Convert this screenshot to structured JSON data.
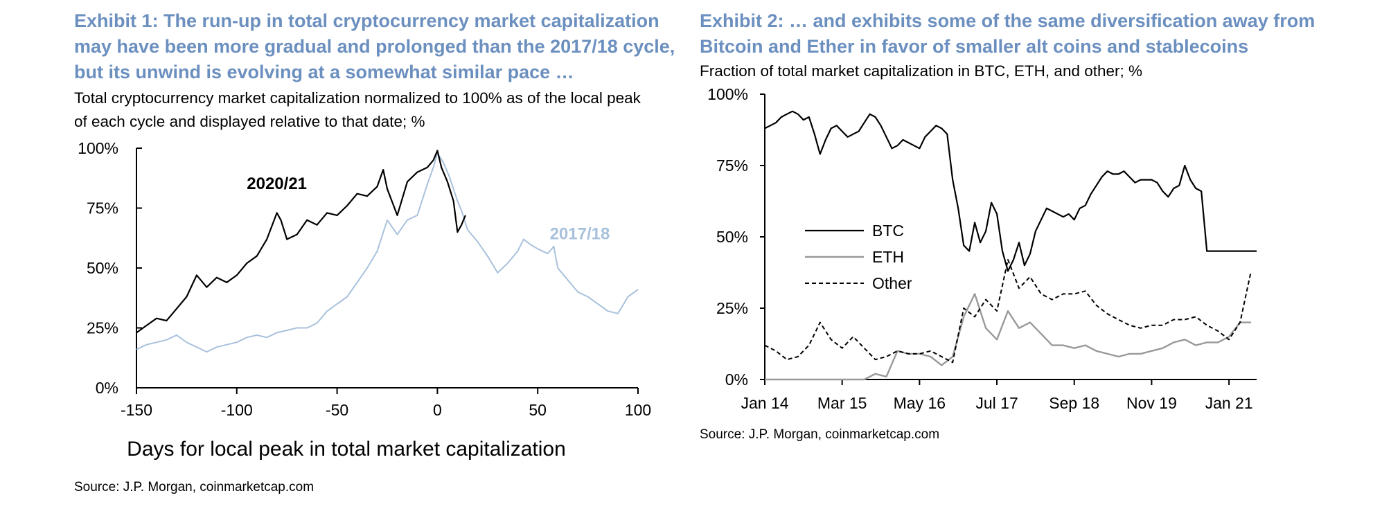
{
  "exhibit1": {
    "title_lines": [
      "Exhibit 1: The run-up in total cryptocurrency market capitalization",
      "may have been more gradual and prolonged than the 2017/18 cycle,",
      "but its unwind is evolving at a somewhat similar pace …"
    ],
    "subtitle_lines": [
      "Total cryptocurrency market capitalization normalized to 100% as of the local peak",
      "of each cycle and displayed relative to that date; %"
    ],
    "source": "Source: J.P.  Morgan, coinmarketcap.com"
  },
  "exhibit2": {
    "title_lines": [
      "Exhibit 2: … and exhibits some of the same diversification away from",
      "Bitcoin and Ether in favor of smaller alt coins and stablecoins"
    ],
    "subtitle_lines": [
      "Fraction of total market capitalization in BTC, ETH, and other; %"
    ],
    "source": "Source: J.P.  Morgan, coinmarketcap.com"
  },
  "colors": {
    "title": "#6b8fbf",
    "series_2020_21": "#000000",
    "series_2017_18": "#a9c1dc",
    "btc": "#000000",
    "eth": "#999999",
    "other": "#000000"
  },
  "chart_data": [
    {
      "type": "line",
      "xlabel": "Days for local peak in total market capitalization",
      "ylabel": "",
      "xlim": [
        -150,
        100
      ],
      "ylim": [
        0,
        100
      ],
      "x_ticks": [
        -150,
        -100,
        -50,
        0,
        50,
        100
      ],
      "x_tick_labels": [
        "-150",
        "-100",
        "-50",
        "0",
        "50",
        "100"
      ],
      "y_ticks": [
        0,
        25,
        50,
        75,
        100
      ],
      "y_tick_labels": [
        "0%",
        "25%",
        "50%",
        "75%",
        "100%"
      ],
      "annotations": [
        "2020/21",
        "2017/18"
      ],
      "series": [
        {
          "name": "2020/21",
          "x": [
            -150,
            -145,
            -140,
            -135,
            -130,
            -125,
            -120,
            -115,
            -110,
            -105,
            -100,
            -95,
            -90,
            -85,
            -80,
            -78,
            -75,
            -70,
            -65,
            -60,
            -55,
            -50,
            -45,
            -40,
            -35,
            -30,
            -27,
            -25,
            -20,
            -15,
            -10,
            -5,
            -2,
            0,
            2,
            5,
            8,
            10,
            12,
            14
          ],
          "y": [
            23,
            26,
            29,
            28,
            33,
            38,
            47,
            42,
            46,
            44,
            47,
            52,
            55,
            62,
            73,
            70,
            62,
            64,
            70,
            68,
            73,
            72,
            76,
            81,
            80,
            84,
            91,
            83,
            72,
            86,
            90,
            92,
            95,
            99,
            92,
            86,
            78,
            65,
            68,
            72
          ]
        },
        {
          "name": "2017/18",
          "x": [
            -150,
            -145,
            -140,
            -135,
            -130,
            -125,
            -120,
            -115,
            -110,
            -105,
            -100,
            -95,
            -90,
            -85,
            -80,
            -75,
            -70,
            -65,
            -60,
            -55,
            -50,
            -45,
            -40,
            -35,
            -30,
            -25,
            -20,
            -15,
            -10,
            -5,
            -2,
            0,
            3,
            6,
            10,
            12,
            15,
            20,
            25,
            30,
            35,
            40,
            43,
            46,
            50,
            55,
            58,
            60,
            65,
            70,
            75,
            80,
            85,
            90,
            95,
            100
          ],
          "y": [
            16,
            18,
            19,
            20,
            22,
            19,
            17,
            15,
            17,
            18,
            19,
            21,
            22,
            21,
            23,
            24,
            25,
            25,
            27,
            32,
            35,
            38,
            44,
            50,
            57,
            70,
            64,
            70,
            72,
            85,
            92,
            98,
            94,
            88,
            78,
            74,
            66,
            61,
            55,
            48,
            52,
            57,
            62,
            60,
            58,
            56,
            59,
            50,
            45,
            40,
            38,
            35,
            32,
            31,
            38,
            41
          ]
        }
      ]
    },
    {
      "type": "line",
      "xlabel": "",
      "ylabel": "",
      "ylim": [
        0,
        100
      ],
      "x_tick_labels": [
        "Jan 14",
        "Mar 15",
        "May 16",
        "Jul 17",
        "Sep 18",
        "Nov 19",
        "Jan 21"
      ],
      "x_ticks": [
        0,
        14,
        28,
        42,
        56,
        70,
        84
      ],
      "y_ticks": [
        0,
        25,
        50,
        75,
        100
      ],
      "y_tick_labels": [
        "0%",
        "25%",
        "50%",
        "75%",
        "100%"
      ],
      "legend": "center-left",
      "series": [
        {
          "name": "BTC",
          "x": [
            0,
            1,
            2,
            3,
            4,
            5,
            6,
            7,
            8,
            9,
            10,
            11,
            12,
            13,
            14,
            15,
            16,
            17,
            18,
            19,
            20,
            21,
            22,
            23,
            24,
            25,
            26,
            27,
            28,
            29,
            30,
            31,
            32,
            33,
            34,
            35,
            36,
            37,
            38,
            39,
            40,
            41,
            42,
            43,
            44,
            45,
            46,
            47,
            48,
            49,
            50,
            51,
            52,
            53,
            54,
            55,
            56,
            57,
            58,
            59,
            60,
            61,
            62,
            63,
            64,
            65,
            66,
            67,
            68,
            69,
            70,
            71,
            72,
            73,
            74,
            75,
            76,
            77,
            78,
            79,
            80,
            81,
            82,
            83,
            84,
            85,
            86,
            87,
            88,
            89
          ],
          "y": [
            88,
            89,
            90,
            92,
            93,
            94,
            93,
            91,
            92,
            86,
            79,
            84,
            88,
            89,
            87,
            85,
            86,
            87,
            90,
            93,
            92,
            89,
            85,
            81,
            82,
            84,
            83,
            82,
            81,
            85,
            87,
            89,
            88,
            86,
            70,
            60,
            47,
            45,
            55,
            48,
            52,
            62,
            58,
            45,
            38,
            42,
            48,
            40,
            44,
            52,
            56,
            60,
            59,
            58,
            57,
            58,
            56,
            60,
            61,
            65,
            68,
            71,
            73,
            72,
            72,
            73,
            71,
            69,
            70,
            70,
            70,
            69,
            66,
            64,
            67,
            68,
            75,
            70,
            67,
            66,
            45,
            45,
            45,
            45,
            45,
            45,
            45,
            45,
            45,
            45
          ]
        },
        {
          "name": "ETH",
          "x": [
            0,
            5,
            10,
            15,
            18,
            20,
            22,
            24,
            26,
            28,
            30,
            32,
            34,
            36,
            38,
            40,
            42,
            44,
            46,
            48,
            50,
            52,
            54,
            56,
            58,
            60,
            62,
            64,
            66,
            68,
            70,
            72,
            74,
            76,
            78,
            80,
            82,
            84,
            86,
            88
          ],
          "y": [
            0,
            0,
            0,
            0,
            0,
            2,
            1,
            10,
            9,
            9,
            8,
            5,
            8,
            22,
            30,
            18,
            14,
            24,
            18,
            20,
            16,
            12,
            12,
            11,
            12,
            10,
            9,
            8,
            9,
            9,
            10,
            11,
            13,
            14,
            12,
            13,
            13,
            15,
            20,
            20
          ]
        },
        {
          "name": "Other",
          "x": [
            0,
            2,
            4,
            6,
            8,
            10,
            12,
            14,
            16,
            18,
            20,
            22,
            24,
            26,
            28,
            30,
            32,
            34,
            36,
            38,
            40,
            42,
            44,
            46,
            48,
            50,
            52,
            54,
            56,
            58,
            60,
            62,
            64,
            66,
            68,
            70,
            72,
            74,
            76,
            78,
            80,
            82,
            84,
            86,
            88
          ],
          "y": [
            12,
            10,
            7,
            8,
            12,
            20,
            14,
            11,
            15,
            11,
            7,
            8,
            10,
            9,
            9,
            10,
            8,
            6,
            25,
            22,
            28,
            24,
            42,
            32,
            36,
            30,
            28,
            30,
            30,
            31,
            26,
            23,
            21,
            19,
            18,
            19,
            19,
            21,
            21,
            22,
            19,
            17,
            14,
            20,
            38
          ]
        }
      ]
    }
  ]
}
